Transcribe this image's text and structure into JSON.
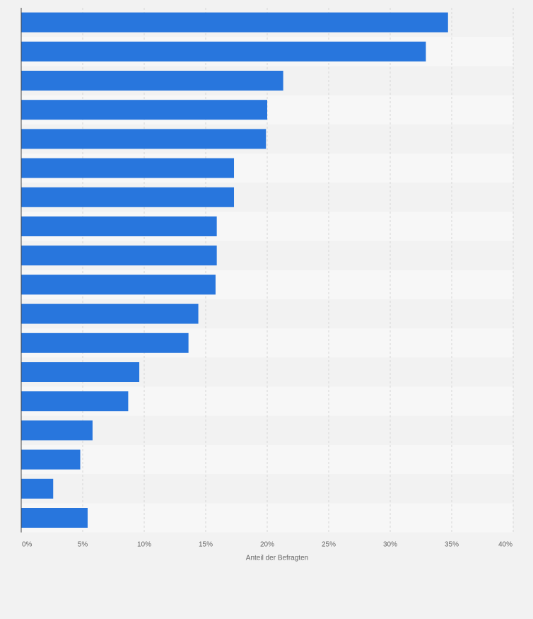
{
  "chart_data": {
    "type": "bar",
    "orientation": "horizontal",
    "title": "",
    "xlabel": "Anteil der Befragten",
    "ylabel": "",
    "xlim": [
      0,
      40
    ],
    "grid": true,
    "ticks": [
      {
        "value": 0,
        "label": "0%"
      },
      {
        "value": 5,
        "label": "5%"
      },
      {
        "value": 10,
        "label": "10%"
      },
      {
        "value": 15,
        "label": "15%"
      },
      {
        "value": 20,
        "label": "20%"
      },
      {
        "value": 25,
        "label": "25%"
      },
      {
        "value": 30,
        "label": "30%"
      },
      {
        "value": 35,
        "label": "35%"
      },
      {
        "value": 40,
        "label": "40%"
      }
    ],
    "categories": [
      "",
      "",
      "",
      "",
      "",
      "",
      "",
      "",
      "",
      "",
      "",
      "",
      "",
      "",
      "",
      "",
      "",
      ""
    ],
    "values": [
      34.7,
      32.9,
      21.3,
      20.0,
      19.9,
      17.3,
      17.3,
      15.9,
      15.9,
      15.8,
      14.4,
      13.6,
      9.6,
      8.7,
      5.8,
      4.8,
      2.6,
      5.4
    ],
    "colors": {
      "bar": "#2876dd",
      "band_dark": "#f2f2f2",
      "band_light": "#f7f7f7",
      "grid": "#d6d6d6",
      "axis": "#444444",
      "tick_text": "#666666"
    }
  }
}
